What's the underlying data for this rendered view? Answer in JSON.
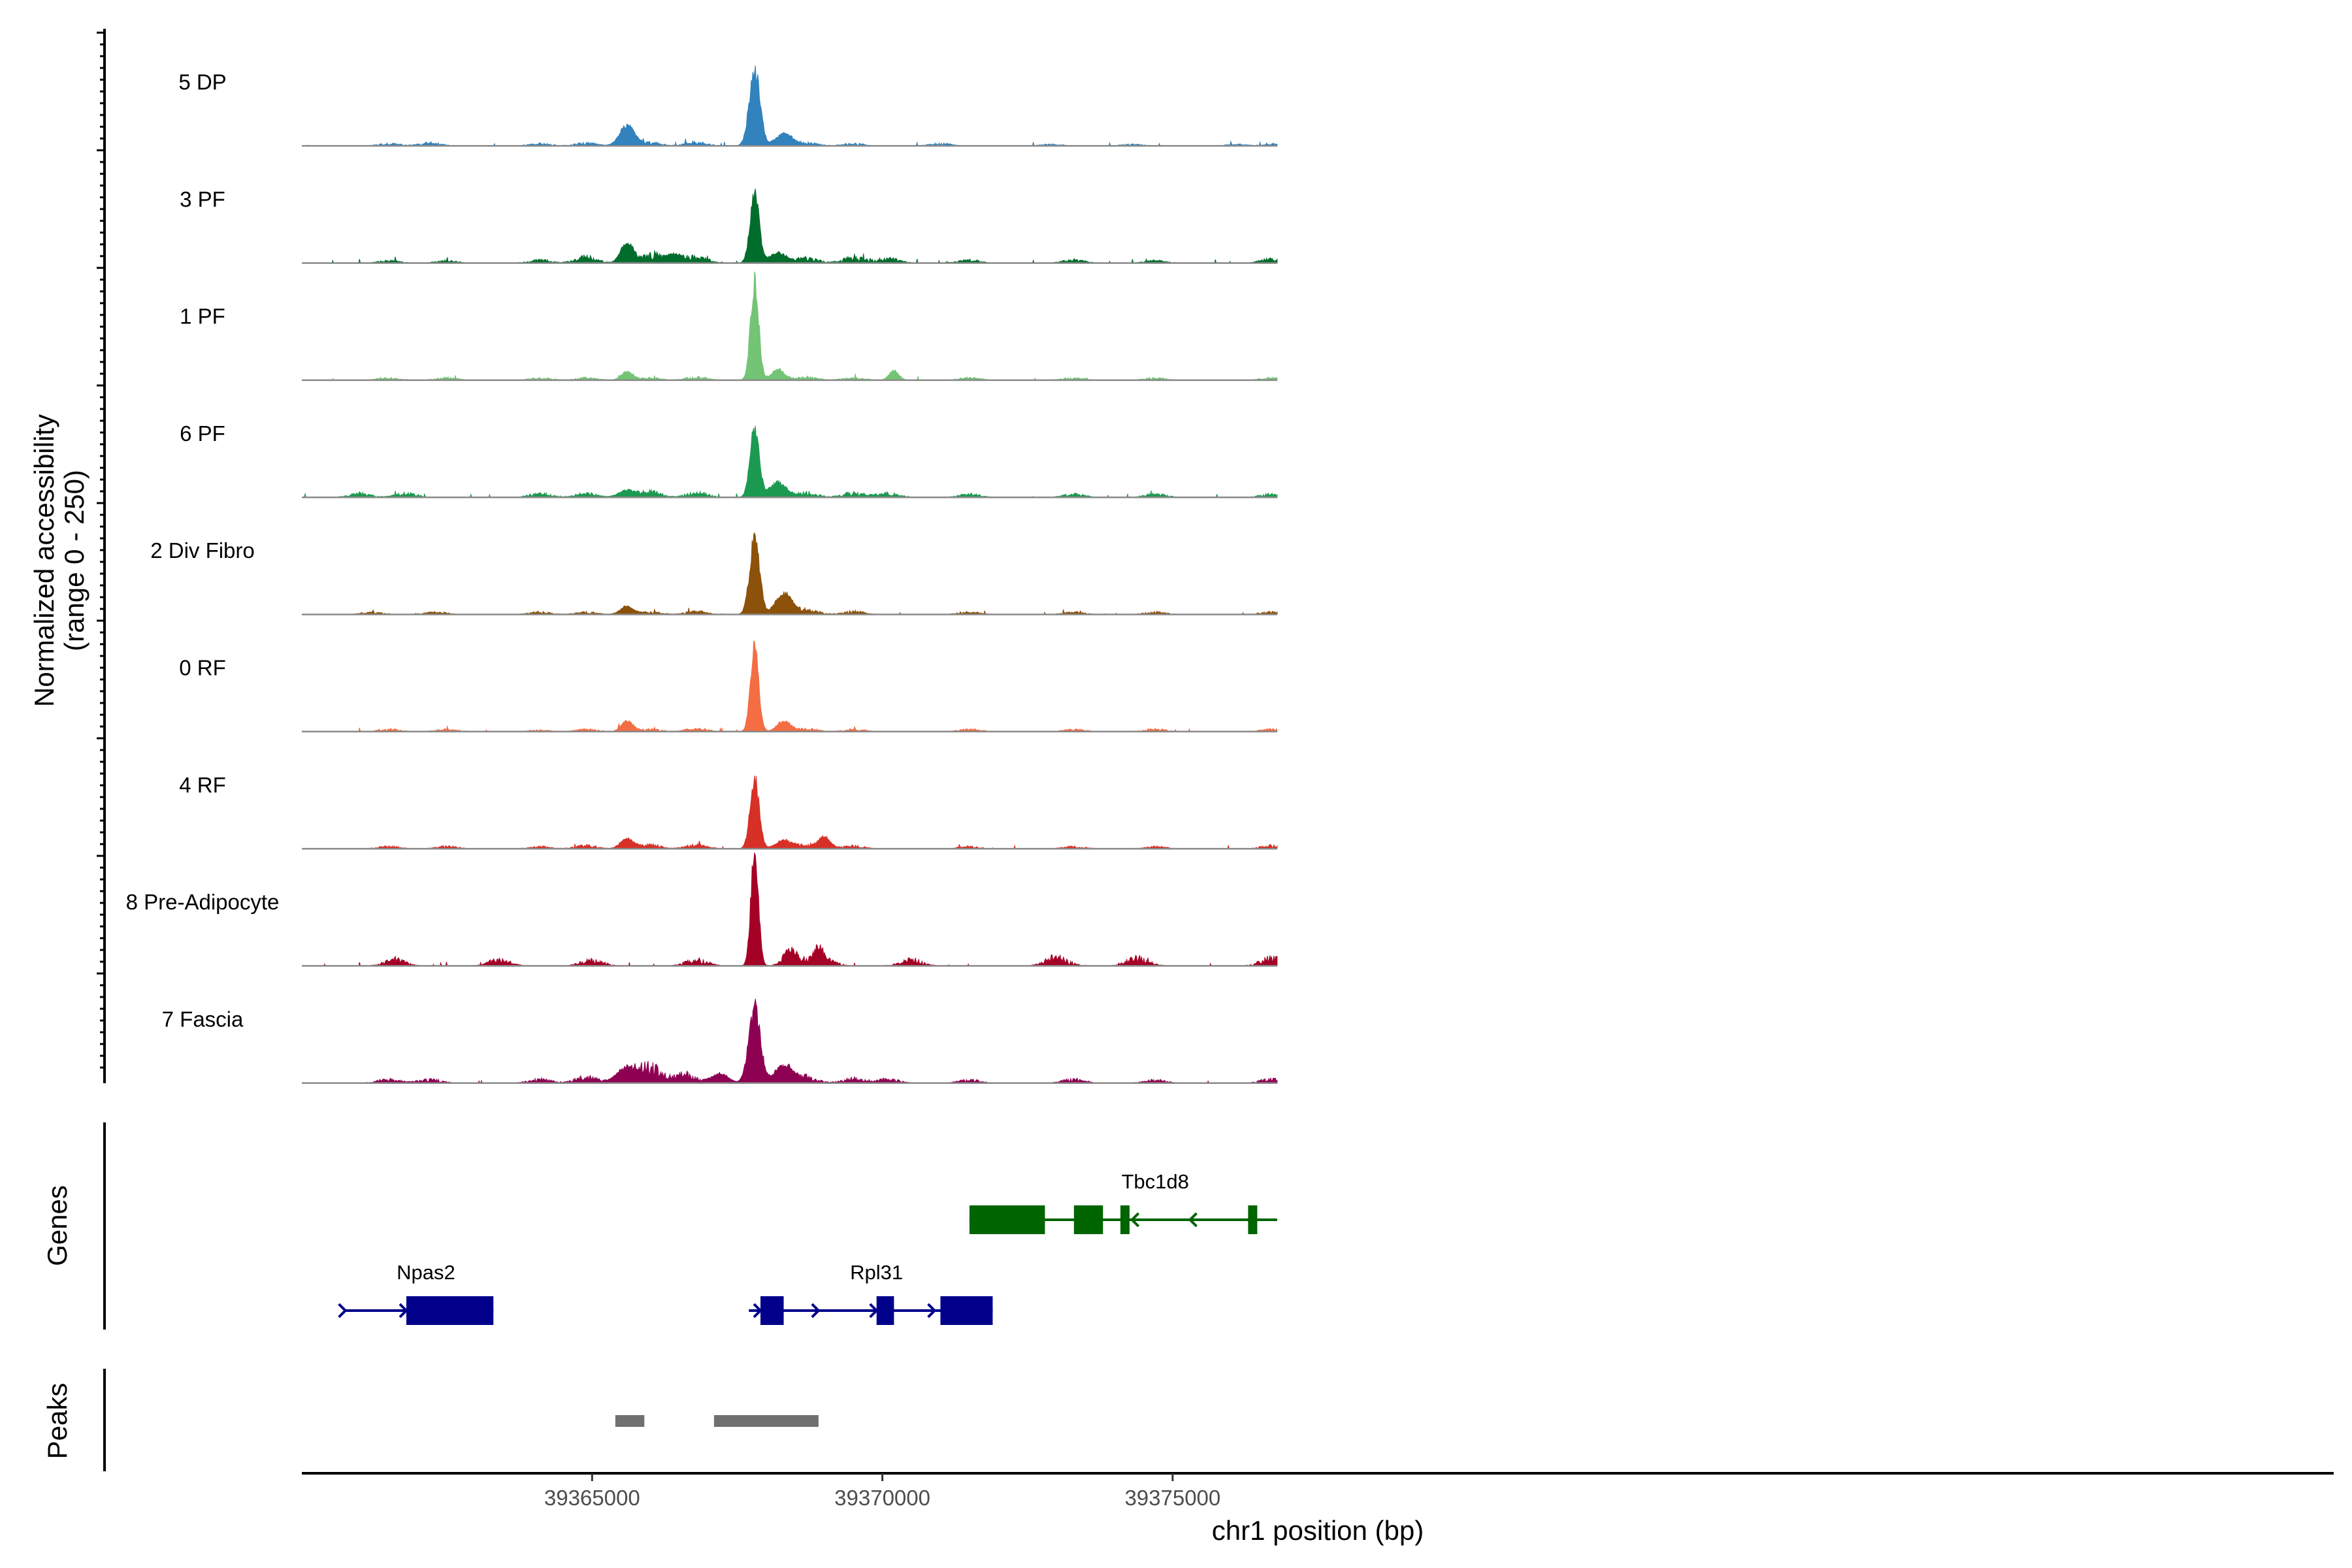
{
  "chart_data": {
    "type": "area",
    "title": "",
    "xlabel": "chr1 position (bp)",
    "ylabel": "Normalized accessibility",
    "ylabel_range": "(range 0 - 250)",
    "ylim": [
      0,
      250
    ],
    "x_range": [
      39360000,
      39395000
    ],
    "x_ticks": [
      39365000,
      39370000,
      39375000
    ],
    "x_tick_labels": [
      "39365000",
      "39370000",
      "39375000"
    ],
    "tracks": [
      {
        "name": "5 DP",
        "color": "#3182BD",
        "background": [
          [
            39361500,
            3
          ],
          [
            39362200,
            4
          ],
          [
            39364100,
            3
          ],
          [
            39364900,
            4
          ],
          [
            39366000,
            4
          ],
          [
            39366800,
            5
          ],
          [
            39368700,
            4
          ],
          [
            39369500,
            3
          ],
          [
            39371000,
            3
          ],
          [
            39372900,
            2
          ],
          [
            39374300,
            2
          ],
          [
            39376100,
            2
          ],
          [
            39376800,
            3
          ]
        ],
        "peaks": [
          [
            39365600,
            30,
            180
          ],
          [
            39367800,
            110,
            130
          ],
          [
            39368300,
            18,
            200
          ]
        ]
      },
      {
        "name": "3 PF",
        "color": "#006D2C",
        "background": [
          [
            39361500,
            3
          ],
          [
            39362500,
            3
          ],
          [
            39364100,
            4
          ],
          [
            39364900,
            8
          ],
          [
            39366000,
            10
          ],
          [
            39366800,
            8
          ],
          [
            39368700,
            7
          ],
          [
            39369500,
            8
          ],
          [
            39370100,
            6
          ],
          [
            39371500,
            4
          ],
          [
            39373300,
            4
          ],
          [
            39374700,
            3
          ],
          [
            39376700,
            5
          ]
        ],
        "peaks": [
          [
            39365600,
            30,
            150
          ],
          [
            39367800,
            100,
            110
          ],
          [
            39368200,
            15,
            200
          ],
          [
            39366400,
            12,
            200
          ]
        ]
      },
      {
        "name": "1 PF",
        "color": "#74C476",
        "background": [
          [
            39361500,
            3
          ],
          [
            39362500,
            3
          ],
          [
            39364100,
            3
          ],
          [
            39364900,
            3
          ],
          [
            39366000,
            3
          ],
          [
            39366800,
            4
          ],
          [
            39368700,
            4
          ],
          [
            39369500,
            3
          ],
          [
            39371500,
            3
          ],
          [
            39373300,
            3
          ],
          [
            39374700,
            3
          ],
          [
            39376700,
            3
          ]
        ],
        "peaks": [
          [
            39365600,
            12,
            140
          ],
          [
            39367800,
            140,
            100
          ],
          [
            39368200,
            16,
            160
          ],
          [
            39370200,
            14,
            120
          ]
        ]
      },
      {
        "name": "6 PF",
        "color": "#1D9A52",
        "background": [
          [
            39361000,
            5
          ],
          [
            39361800,
            5
          ],
          [
            39364100,
            5
          ],
          [
            39364900,
            5
          ],
          [
            39366000,
            7
          ],
          [
            39366800,
            6
          ],
          [
            39368700,
            6
          ],
          [
            39369500,
            6
          ],
          [
            39370100,
            5
          ],
          [
            39371500,
            4
          ],
          [
            39373300,
            4
          ],
          [
            39374700,
            4
          ],
          [
            39376700,
            4
          ]
        ],
        "peaks": [
          [
            39365600,
            10,
            200
          ],
          [
            39367800,
            100,
            110
          ],
          [
            39368200,
            22,
            200
          ]
        ]
      },
      {
        "name": "2 Div Fibro",
        "color": "#8C510A",
        "background": [
          [
            39361200,
            3
          ],
          [
            39362300,
            3
          ],
          [
            39364100,
            3
          ],
          [
            39364900,
            3
          ],
          [
            39366000,
            3
          ],
          [
            39366800,
            4
          ],
          [
            39368700,
            6
          ],
          [
            39369500,
            4
          ],
          [
            39371500,
            3
          ],
          [
            39373300,
            3
          ],
          [
            39374700,
            3
          ],
          [
            39376700,
            3
          ]
        ],
        "peaks": [
          [
            39365600,
            12,
            160
          ],
          [
            39367800,
            110,
            120
          ],
          [
            39368300,
            30,
            200
          ]
        ]
      },
      {
        "name": "0 RF",
        "color": "#F46D43",
        "background": [
          [
            39361500,
            3
          ],
          [
            39362500,
            3
          ],
          [
            39364100,
            2
          ],
          [
            39364900,
            3
          ],
          [
            39366000,
            3
          ],
          [
            39366800,
            4
          ],
          [
            39368700,
            4
          ],
          [
            39369500,
            3
          ],
          [
            39371500,
            3
          ],
          [
            39373300,
            3
          ],
          [
            39374700,
            3
          ],
          [
            39376700,
            3
          ]
        ],
        "peaks": [
          [
            39365600,
            16,
            140
          ],
          [
            39367800,
            120,
            100
          ],
          [
            39368300,
            16,
            160
          ]
        ]
      },
      {
        "name": "4 RF",
        "color": "#D73027",
        "background": [
          [
            39361500,
            3
          ],
          [
            39362500,
            3
          ],
          [
            39364100,
            3
          ],
          [
            39364900,
            4
          ],
          [
            39366000,
            5
          ],
          [
            39366800,
            5
          ],
          [
            39368700,
            5
          ],
          [
            39369500,
            4
          ],
          [
            39371500,
            3
          ],
          [
            39373300,
            3
          ],
          [
            39374700,
            3
          ],
          [
            39376700,
            4
          ]
        ],
        "peaks": [
          [
            39365600,
            14,
            160
          ],
          [
            39367800,
            100,
            110
          ],
          [
            39368300,
            12,
            200
          ],
          [
            39369000,
            16,
            150
          ]
        ]
      },
      {
        "name": "8 Pre-Adipocyte",
        "color": "#A50026",
        "background": [
          [
            39361600,
            8
          ],
          [
            39363400,
            8
          ],
          [
            39365000,
            8
          ],
          [
            39366800,
            8
          ],
          [
            39368500,
            10
          ],
          [
            39369000,
            8
          ],
          [
            39370500,
            8
          ],
          [
            39373000,
            12
          ],
          [
            39374400,
            10
          ],
          [
            39376700,
            10
          ]
        ],
        "peaks": [
          [
            39367800,
            170,
            90
          ],
          [
            39368400,
            18,
            120
          ],
          [
            39368900,
            20,
            120
          ]
        ]
      },
      {
        "name": "7 Fascia",
        "color": "#8E0152",
        "background": [
          [
            39361500,
            5
          ],
          [
            39362200,
            5
          ],
          [
            39364100,
            5
          ],
          [
            39364900,
            8
          ],
          [
            39366000,
            20
          ],
          [
            39366600,
            12
          ],
          [
            39368700,
            8
          ],
          [
            39369500,
            6
          ],
          [
            39370100,
            5
          ],
          [
            39371500,
            4
          ],
          [
            39373300,
            5
          ],
          [
            39374700,
            4
          ],
          [
            39376700,
            5
          ]
        ],
        "peaks": [
          [
            39365600,
            22,
            250
          ],
          [
            39367800,
            110,
            140
          ],
          [
            39368300,
            26,
            220
          ],
          [
            39367200,
            14,
            200
          ]
        ]
      }
    ],
    "genes": [
      {
        "name": "Npas2",
        "strand": "+",
        "color": "#00008B",
        "start": 39360750,
        "end": 39363300,
        "exons": [
          [
            39361800,
            39363300
          ]
        ],
        "arrows": [
          39360750,
          39361800
        ]
      },
      {
        "name": "Rpl31",
        "strand": "+",
        "color": "#00008B",
        "start": 39367700,
        "end": 39371900,
        "exons": [
          [
            39367900,
            39368300
          ],
          [
            39369900,
            39370200
          ],
          [
            39371000,
            39371900
          ]
        ],
        "arrows": [
          39367900,
          39368900,
          39369900,
          39370900
        ]
      },
      {
        "name": "Tbc1d8",
        "strand": "-",
        "color": "#006400",
        "start": 39371500,
        "end": 39376800,
        "exons": [
          [
            39371500,
            39372800
          ],
          [
            39373300,
            39373800
          ],
          [
            39374100,
            39374200
          ],
          [
            39376300,
            39376350
          ]
        ],
        "arrows": [
          39374300,
          39375300,
          39376300
        ]
      }
    ],
    "peaks_track": {
      "name": "Peaks",
      "color": "#707070",
      "regions": [
        [
          39365400,
          39365900
        ],
        [
          39367100,
          39368900
        ]
      ]
    },
    "panel_labels": {
      "genes": "Genes",
      "peaks": "Peaks"
    }
  }
}
